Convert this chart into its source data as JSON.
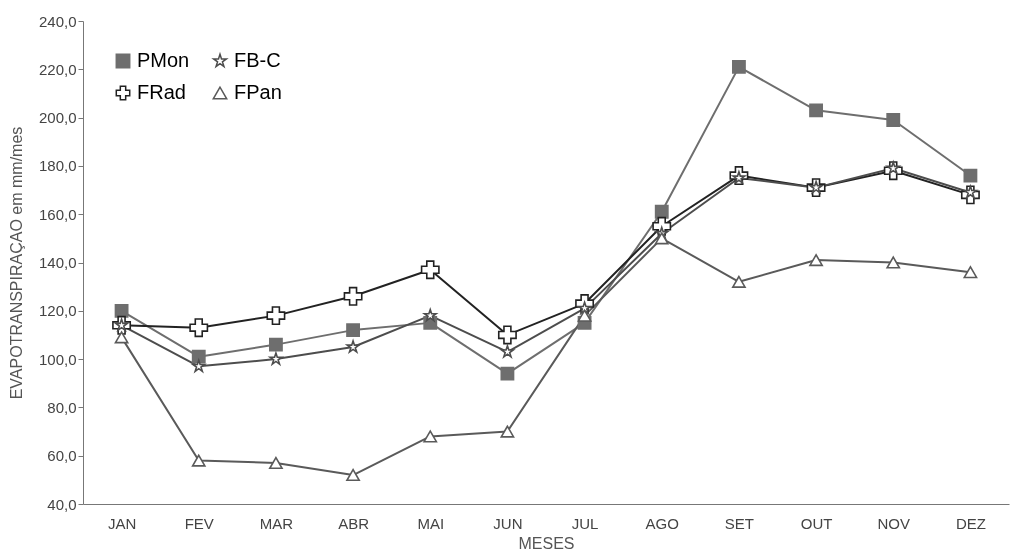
{
  "chart_data": {
    "type": "line",
    "xlabel": "MESES",
    "ylabel": "EVAPOTRANSPIRAÇAO em mm/mes",
    "categories": [
      "JAN",
      "FEV",
      "MAR",
      "ABR",
      "MAI",
      "JUN",
      "JUL",
      "AGO",
      "SET",
      "OUT",
      "NOV",
      "DEZ"
    ],
    "series": [
      {
        "name": "PMon",
        "color": "#6e6e6e",
        "marker": "square",
        "values": [
          120,
          101,
          106,
          112,
          115,
          94,
          115,
          161,
          221,
          203,
          199,
          176
        ]
      },
      {
        "name": "FRad",
        "color": "#222222",
        "marker": "cross",
        "values": [
          114,
          113,
          118,
          126,
          137,
          110,
          123,
          155,
          176,
          171,
          178,
          168
        ]
      },
      {
        "name": "FB-C",
        "color": "#4d4d4d",
        "marker": "star",
        "values": [
          114,
          97,
          100,
          105,
          118,
          103,
          121,
          152,
          175,
          171,
          179,
          169
        ]
      },
      {
        "name": "FPan",
        "color": "#5a5a5a",
        "marker": "triangle",
        "values": [
          109,
          58,
          57,
          52,
          68,
          70,
          118,
          150,
          132,
          141,
          140,
          136
        ]
      }
    ],
    "ylim": [
      40,
      240
    ],
    "yticks": [
      {
        "value": 40,
        "label": "40,0"
      },
      {
        "value": 60,
        "label": "60,0"
      },
      {
        "value": 80,
        "label": "80,0"
      },
      {
        "value": 100,
        "label": "100,0"
      },
      {
        "value": 120,
        "label": "120,0"
      },
      {
        "value": 140,
        "label": "140,0"
      },
      {
        "value": 160,
        "label": "160,0"
      },
      {
        "value": 180,
        "label": "180,0"
      },
      {
        "value": 200,
        "label": "200,0"
      },
      {
        "value": 220,
        "label": "220,0"
      },
      {
        "value": 240,
        "label": "240,0"
      }
    ],
    "grid": false,
    "legend": "top left"
  }
}
